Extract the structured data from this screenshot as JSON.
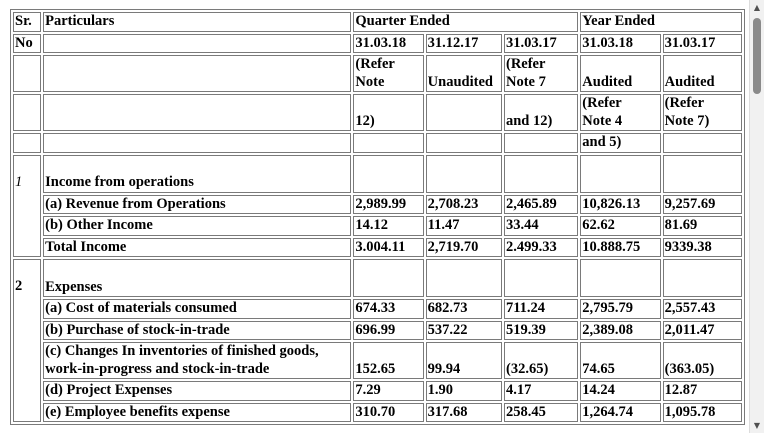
{
  "header": {
    "sr": "Sr.",
    "no": "No",
    "particulars": "Particulars",
    "quarter_ended": "Quarter Ended",
    "year_ended": "Year Ended",
    "dates": [
      "31.03.18",
      "31.12.17",
      "31.03.17",
      "31.03.18",
      "31.03.17"
    ],
    "notes_row1": [
      "(Refer\nNote",
      "Unaudited",
      "(Refer\nNote 7",
      "Audited",
      "Audited"
    ],
    "notes_row2": [
      "12)",
      "",
      "and 12)",
      "(Refer\nNote 4",
      "(Refer\nNote 7)"
    ],
    "notes_row3": [
      "",
      "",
      "",
      "and 5)",
      ""
    ]
  },
  "sections": {
    "s1_no": "1",
    "s1_title": "Income from operations",
    "s2_no": "2",
    "s2_title": "Expenses"
  },
  "rows": {
    "revenue": {
      "label": "(a) Revenue from Operations",
      "values": [
        "2,989.99",
        "2,708.23",
        "2,465.89",
        "10,826.13",
        "9,257.69"
      ]
    },
    "other_income": {
      "label": "(b) Other Income",
      "values": [
        "14.12",
        "11.47",
        "33.44",
        "62.62",
        "81.69"
      ]
    },
    "total_income": {
      "label": "Total Income",
      "values": [
        "3.004.11",
        "2,719.70",
        "2.499.33",
        "10.888.75",
        "9339.38"
      ]
    },
    "materials": {
      "label": "(a) Cost of materials consumed",
      "values": [
        "674.33",
        "682.73",
        "711.24",
        "2,795.79",
        "2,557.43"
      ]
    },
    "stock_in_trade": {
      "label": "(b) Purchase of stock-in-trade",
      "values": [
        "696.99",
        "537.22",
        "519.39",
        "2,389.08",
        "2,011.47"
      ]
    },
    "inventories": {
      "label": "(c) Changes In inventories of finished goods, work-in-progress and stock-in-trade",
      "values": [
        "152.65",
        "99.94",
        "(32.65)",
        "74.65",
        "(363.05)"
      ]
    },
    "project": {
      "label": "(d) Project Expenses",
      "values": [
        "7.29",
        "1.90",
        "4.17",
        "14.24",
        "12.87"
      ]
    },
    "employee": {
      "label": "(e) Employee benefits expense",
      "values": [
        "310.70",
        "317.68",
        "258.45",
        "1,264.74",
        "1,095.78"
      ]
    }
  },
  "scrollbar": {
    "up_icon": "▲",
    "down_icon": "▼",
    "position": 0.0
  }
}
